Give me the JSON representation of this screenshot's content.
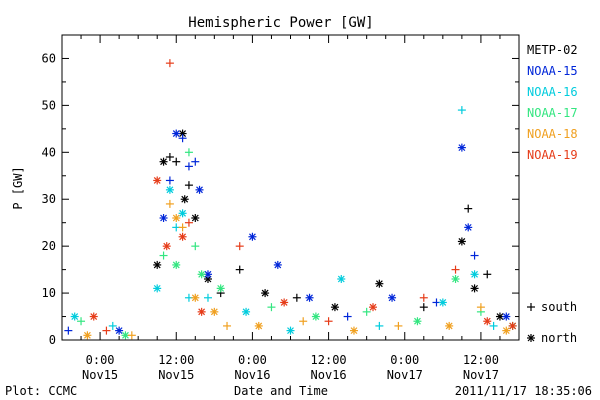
{
  "chart_data": {
    "type": "scatter",
    "title": "Hemispheric Power [GW]",
    "xlabel": "Date and Time",
    "ylabel": "P [GW]",
    "ylim": [
      0,
      65
    ],
    "xlim": [
      "2011-11-14 18:00",
      "2011-11-17 18:00"
    ],
    "yticks": [
      0,
      10,
      20,
      30,
      40,
      50,
      60
    ],
    "xticks": [
      {
        "t": "2011-11-15 00:00",
        "time": "0:00",
        "date": "Nov15"
      },
      {
        "t": "2011-11-15 12:00",
        "time": "12:00",
        "date": "Nov15"
      },
      {
        "t": "2011-11-16 00:00",
        "time": "0:00",
        "date": "Nov16"
      },
      {
        "t": "2011-11-16 12:00",
        "time": "12:00",
        "date": "Nov16"
      },
      {
        "t": "2011-11-17 00:00",
        "time": "0:00",
        "date": "Nov17"
      },
      {
        "t": "2011-11-17 12:00",
        "time": "12:00",
        "date": "Nov17"
      }
    ],
    "legend": {
      "placement": "right",
      "markers": [
        {
          "symbol": "+",
          "label": "south"
        },
        {
          "symbol": "*",
          "label": "north"
        }
      ]
    },
    "series": [
      {
        "name": "METP-02",
        "color": "#000000",
        "points": [
          {
            "t": "2011-11-15 09:00",
            "v": 16,
            "h": "N"
          },
          {
            "t": "2011-11-15 10:00",
            "v": 38,
            "h": "N"
          },
          {
            "t": "2011-11-15 11:00",
            "v": 39,
            "h": "S"
          },
          {
            "t": "2011-11-15 12:00",
            "v": 38,
            "h": "S"
          },
          {
            "t": "2011-11-15 13:00",
            "v": 44,
            "h": "N"
          },
          {
            "t": "2011-11-15 13:20",
            "v": 30,
            "h": "N"
          },
          {
            "t": "2011-11-15 14:00",
            "v": 33,
            "h": "S"
          },
          {
            "t": "2011-11-15 15:00",
            "v": 26,
            "h": "N"
          },
          {
            "t": "2011-11-15 17:00",
            "v": 13,
            "h": "N"
          },
          {
            "t": "2011-11-15 19:00",
            "v": 10,
            "h": "S"
          },
          {
            "t": "2011-11-15 22:00",
            "v": 15,
            "h": "S"
          },
          {
            "t": "2011-11-16 02:00",
            "v": 10,
            "h": "N"
          },
          {
            "t": "2011-11-16 07:00",
            "v": 9,
            "h": "S"
          },
          {
            "t": "2011-11-16 13:00",
            "v": 7,
            "h": "N"
          },
          {
            "t": "2011-11-16 20:00",
            "v": 12,
            "h": "N"
          },
          {
            "t": "2011-11-17 03:00",
            "v": 7,
            "h": "S"
          },
          {
            "t": "2011-11-17 09:00",
            "v": 21,
            "h": "N"
          },
          {
            "t": "2011-11-17 10:00",
            "v": 28,
            "h": "S"
          },
          {
            "t": "2011-11-17 11:00",
            "v": 11,
            "h": "N"
          },
          {
            "t": "2011-11-17 13:00",
            "v": 14,
            "h": "S"
          },
          {
            "t": "2011-11-17 15:00",
            "v": 5,
            "h": "N"
          }
        ]
      },
      {
        "name": "NOAA-15",
        "color": "#0026d9",
        "points": [
          {
            "t": "2011-11-14 19:00",
            "v": 2,
            "h": "S"
          },
          {
            "t": "2011-11-15 03:00",
            "v": 2,
            "h": "N"
          },
          {
            "t": "2011-11-15 10:00",
            "v": 26,
            "h": "N"
          },
          {
            "t": "2011-11-15 11:00",
            "v": 34,
            "h": "S"
          },
          {
            "t": "2011-11-15 12:00",
            "v": 44,
            "h": "N"
          },
          {
            "t": "2011-11-15 13:00",
            "v": 43,
            "h": "S"
          },
          {
            "t": "2011-11-15 14:00",
            "v": 37,
            "h": "S"
          },
          {
            "t": "2011-11-15 15:00",
            "v": 38,
            "h": "S"
          },
          {
            "t": "2011-11-15 15:40",
            "v": 32,
            "h": "N"
          },
          {
            "t": "2011-11-15 17:00",
            "v": 14,
            "h": "N"
          },
          {
            "t": "2011-11-16 00:00",
            "v": 22,
            "h": "N"
          },
          {
            "t": "2011-11-16 04:00",
            "v": 16,
            "h": "N"
          },
          {
            "t": "2011-11-16 09:00",
            "v": 9,
            "h": "N"
          },
          {
            "t": "2011-11-16 15:00",
            "v": 5,
            "h": "S"
          },
          {
            "t": "2011-11-16 22:00",
            "v": 9,
            "h": "N"
          },
          {
            "t": "2011-11-17 05:00",
            "v": 8,
            "h": "S"
          },
          {
            "t": "2011-11-17 09:00",
            "v": 41,
            "h": "N"
          },
          {
            "t": "2011-11-17 10:00",
            "v": 24,
            "h": "N"
          },
          {
            "t": "2011-11-17 11:00",
            "v": 18,
            "h": "S"
          },
          {
            "t": "2011-11-17 16:00",
            "v": 5,
            "h": "N"
          }
        ]
      },
      {
        "name": "NOAA-16",
        "color": "#00ccdd",
        "points": [
          {
            "t": "2011-11-14 20:00",
            "v": 5,
            "h": "N"
          },
          {
            "t": "2011-11-15 02:00",
            "v": 3,
            "h": "S"
          },
          {
            "t": "2011-11-15 09:00",
            "v": 11,
            "h": "N"
          },
          {
            "t": "2011-11-15 11:00",
            "v": 32,
            "h": "N"
          },
          {
            "t": "2011-11-15 12:00",
            "v": 24,
            "h": "S"
          },
          {
            "t": "2011-11-15 13:00",
            "v": 27,
            "h": "N"
          },
          {
            "t": "2011-11-15 14:00",
            "v": 9,
            "h": "S"
          },
          {
            "t": "2011-11-15 17:00",
            "v": 9,
            "h": "S"
          },
          {
            "t": "2011-11-15 23:00",
            "v": 6,
            "h": "N"
          },
          {
            "t": "2011-11-16 06:00",
            "v": 2,
            "h": "N"
          },
          {
            "t": "2011-11-16 14:00",
            "v": 13,
            "h": "N"
          },
          {
            "t": "2011-11-16 20:00",
            "v": 3,
            "h": "S"
          },
          {
            "t": "2011-11-17 06:00",
            "v": 8,
            "h": "N"
          },
          {
            "t": "2011-11-17 09:00",
            "v": 49,
            "h": "S"
          },
          {
            "t": "2011-11-17 11:00",
            "v": 14,
            "h": "N"
          },
          {
            "t": "2011-11-17 14:00",
            "v": 3,
            "h": "S"
          }
        ]
      },
      {
        "name": "NOAA-17",
        "color": "#33e680",
        "points": [
          {
            "t": "2011-11-14 21:00",
            "v": 4,
            "h": "S"
          },
          {
            "t": "2011-11-15 04:00",
            "v": 1,
            "h": "N"
          },
          {
            "t": "2011-11-15 10:00",
            "v": 18,
            "h": "S"
          },
          {
            "t": "2011-11-15 12:00",
            "v": 16,
            "h": "N"
          },
          {
            "t": "2011-11-15 14:00",
            "v": 40,
            "h": "S"
          },
          {
            "t": "2011-11-15 15:00",
            "v": 20,
            "h": "S"
          },
          {
            "t": "2011-11-15 16:00",
            "v": 14,
            "h": "N"
          },
          {
            "t": "2011-11-15 19:00",
            "v": 11,
            "h": "N"
          },
          {
            "t": "2011-11-16 03:00",
            "v": 7,
            "h": "S"
          },
          {
            "t": "2011-11-16 10:00",
            "v": 5,
            "h": "N"
          },
          {
            "t": "2011-11-16 18:00",
            "v": 6,
            "h": "S"
          },
          {
            "t": "2011-11-17 02:00",
            "v": 4,
            "h": "N"
          },
          {
            "t": "2011-11-17 08:00",
            "v": 13,
            "h": "N"
          },
          {
            "t": "2011-11-17 12:00",
            "v": 6,
            "h": "S"
          },
          {
            "t": "2011-11-17 17:00",
            "v": 3,
            "h": "N"
          }
        ]
      },
      {
        "name": "NOAA-18",
        "color": "#f0a020",
        "points": [
          {
            "t": "2011-11-14 22:00",
            "v": 1,
            "h": "N"
          },
          {
            "t": "2011-11-15 05:00",
            "v": 1,
            "h": "S"
          },
          {
            "t": "2011-11-15 11:00",
            "v": 29,
            "h": "S"
          },
          {
            "t": "2011-11-15 12:00",
            "v": 26,
            "h": "N"
          },
          {
            "t": "2011-11-15 13:00",
            "v": 24,
            "h": "S"
          },
          {
            "t": "2011-11-15 15:00",
            "v": 9,
            "h": "N"
          },
          {
            "t": "2011-11-15 18:00",
            "v": 6,
            "h": "N"
          },
          {
            "t": "2011-11-15 20:00",
            "v": 3,
            "h": "S"
          },
          {
            "t": "2011-11-16 01:00",
            "v": 3,
            "h": "N"
          },
          {
            "t": "2011-11-16 08:00",
            "v": 4,
            "h": "S"
          },
          {
            "t": "2011-11-16 16:00",
            "v": 2,
            "h": "N"
          },
          {
            "t": "2011-11-16 23:00",
            "v": 3,
            "h": "S"
          },
          {
            "t": "2011-11-17 07:00",
            "v": 3,
            "h": "N"
          },
          {
            "t": "2011-11-17 12:00",
            "v": 7,
            "h": "S"
          },
          {
            "t": "2011-11-17 16:00",
            "v": 2,
            "h": "N"
          }
        ]
      },
      {
        "name": "NOAA-19",
        "color": "#e63c19",
        "points": [
          {
            "t": "2011-11-14 23:00",
            "v": 5,
            "h": "N"
          },
          {
            "t": "2011-11-15 01:00",
            "v": 2,
            "h": "S"
          },
          {
            "t": "2011-11-15 09:00",
            "v": 34,
            "h": "N"
          },
          {
            "t": "2011-11-15 10:30",
            "v": 20,
            "h": "N"
          },
          {
            "t": "2011-11-15 11:00",
            "v": 59,
            "h": "S"
          },
          {
            "t": "2011-11-15 13:00",
            "v": 22,
            "h": "N"
          },
          {
            "t": "2011-11-15 14:00",
            "v": 25,
            "h": "S"
          },
          {
            "t": "2011-11-15 16:00",
            "v": 6,
            "h": "N"
          },
          {
            "t": "2011-11-15 22:00",
            "v": 20,
            "h": "S"
          },
          {
            "t": "2011-11-16 05:00",
            "v": 8,
            "h": "N"
          },
          {
            "t": "2011-11-16 12:00",
            "v": 4,
            "h": "S"
          },
          {
            "t": "2011-11-16 19:00",
            "v": 7,
            "h": "N"
          },
          {
            "t": "2011-11-17 03:00",
            "v": 9,
            "h": "S"
          },
          {
            "t": "2011-11-17 08:00",
            "v": 15,
            "h": "S"
          },
          {
            "t": "2011-11-17 13:00",
            "v": 4,
            "h": "N"
          },
          {
            "t": "2011-11-17 17:00",
            "v": 3,
            "h": "N"
          }
        ]
      }
    ]
  },
  "footer": {
    "plot_credit": "Plot: CCMC",
    "timestamp": "2011/11/17 18:35:06"
  }
}
